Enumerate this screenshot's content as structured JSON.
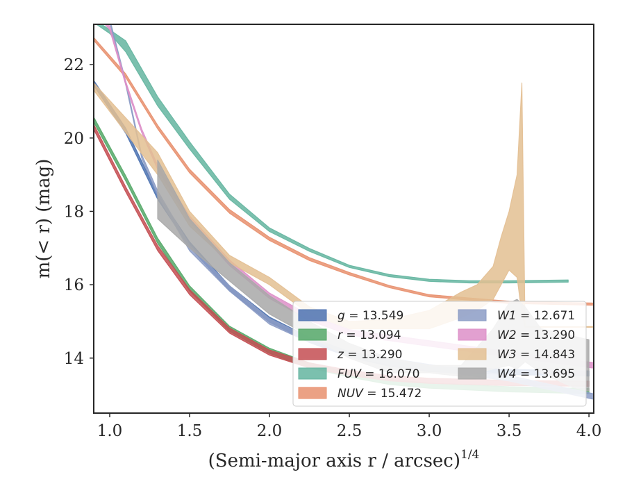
{
  "chart_data": {
    "type": "line",
    "xlabel": "(Semi-major axis r / arcsec)",
    "xlabel_exponent": "1/4",
    "ylabel": "m(< r) (mag)",
    "xlim": [
      0.9,
      4.03
    ],
    "ylim": [
      23.1,
      12.5
    ],
    "y_inverted": true,
    "x_ticks": [
      "1.0",
      "1.5",
      "2.0",
      "2.5",
      "3.0",
      "3.5",
      "4.0"
    ],
    "y_ticks": [
      "14",
      "16",
      "18",
      "20",
      "22"
    ],
    "legend_placement": "lower-right",
    "series": [
      {
        "name": "g = 13.549",
        "band": "g",
        "total": "13.549",
        "color": "#4c72b0",
        "x": [
          0.9,
          1.1,
          1.3,
          1.5,
          1.75,
          2.0,
          2.25,
          2.5,
          2.75,
          3.0,
          3.5,
          4.0
        ],
        "y": [
          21.5,
          20.2,
          18.4,
          17.1,
          15.9,
          15.05,
          14.5,
          14.1,
          13.85,
          13.7,
          13.62,
          13.58
        ],
        "width": [
          0.14,
          0.14,
          0.14,
          0.14,
          0.14,
          0.14,
          0.14,
          0.14,
          0.14,
          0.14,
          0.14,
          0.14
        ]
      },
      {
        "name": "r = 13.094",
        "band": "r",
        "total": "13.094",
        "color": "#55a868",
        "x": [
          0.9,
          1.1,
          1.3,
          1.5,
          1.75,
          2.0,
          2.25,
          2.5,
          2.75,
          3.0,
          3.5,
          4.0
        ],
        "y": [
          20.5,
          18.9,
          17.2,
          15.9,
          14.8,
          14.2,
          13.8,
          13.55,
          13.35,
          13.25,
          13.15,
          13.1
        ],
        "width": [
          0.14,
          0.14,
          0.14,
          0.14,
          0.14,
          0.14,
          0.14,
          0.14,
          0.14,
          0.14,
          0.14,
          0.14
        ]
      },
      {
        "name": "z = 13.290",
        "band": "z",
        "total": "13.290",
        "color": "#c44e52",
        "x": [
          0.9,
          1.1,
          1.3,
          1.5,
          1.75,
          2.0,
          2.25,
          2.5,
          2.75,
          3.0,
          3.5,
          4.0
        ],
        "y": [
          20.3,
          18.6,
          17.0,
          15.8,
          14.75,
          14.15,
          13.8,
          13.6,
          13.45,
          13.38,
          13.32,
          13.3
        ],
        "width": [
          0.14,
          0.14,
          0.14,
          0.14,
          0.14,
          0.14,
          0.14,
          0.14,
          0.14,
          0.14,
          0.14,
          0.14
        ]
      },
      {
        "name": "FUV = 16.070",
        "band": "FUV",
        "total": "16.070",
        "color": "#64b5a0",
        "x": [
          0.9,
          1.0,
          1.1,
          1.3,
          1.5,
          1.75,
          2.0,
          2.25,
          2.5,
          2.75,
          3.0,
          3.25,
          3.5,
          3.87
        ],
        "y": [
          23.2,
          22.9,
          22.5,
          21.0,
          19.8,
          18.4,
          17.5,
          16.95,
          16.5,
          16.25,
          16.12,
          16.08,
          16.08,
          16.1
        ],
        "width": [
          0.1,
          0.1,
          0.3,
          0.25,
          0.2,
          0.14,
          0.1,
          0.08,
          0.06,
          0.06,
          0.06,
          0.06,
          0.06,
          0.06
        ]
      },
      {
        "name": "NUV = 15.472",
        "band": "NUV",
        "total": "15.472",
        "color": "#e8906e",
        "x": [
          0.9,
          1.1,
          1.3,
          1.5,
          1.75,
          2.0,
          2.25,
          2.5,
          2.75,
          3.0,
          3.5,
          4.03
        ],
        "y": [
          22.7,
          21.7,
          20.3,
          19.1,
          18.0,
          17.25,
          16.7,
          16.3,
          15.95,
          15.7,
          15.52,
          15.47
        ],
        "width": [
          0.08,
          0.1,
          0.1,
          0.1,
          0.1,
          0.09,
          0.08,
          0.07,
          0.06,
          0.06,
          0.06,
          0.06
        ]
      },
      {
        "name": "W1 = 12.671",
        "band": "W1",
        "total": "12.671",
        "color": "#8c9cc5",
        "x": [
          0.9,
          1.0,
          1.1,
          1.2,
          1.3,
          1.5,
          1.75,
          2.0,
          2.25,
          2.5,
          3.0,
          3.5,
          4.03
        ],
        "y": [
          23.5,
          23.2,
          21.5,
          19.5,
          18.5,
          17.0,
          15.9,
          15.0,
          14.5,
          14.1,
          13.75,
          13.45,
          12.95
        ],
        "width": [
          0.1,
          0.1,
          0.1,
          0.1,
          0.12,
          0.15,
          0.15,
          0.15,
          0.15,
          0.15,
          0.15,
          0.15,
          0.15
        ]
      },
      {
        "name": "W2 = 13.290",
        "band": "W2",
        "total": "13.290",
        "color": "#dd8fc8",
        "x": [
          0.9,
          1.0,
          1.1,
          1.2,
          1.3,
          1.5,
          1.75,
          2.0,
          2.25,
          2.5,
          3.0,
          3.5,
          4.03
        ],
        "y": [
          23.5,
          23.0,
          21.5,
          20.2,
          19.2,
          17.8,
          16.6,
          15.7,
          15.1,
          14.7,
          14.4,
          14.1,
          13.8
        ],
        "width": [
          0.1,
          0.1,
          0.1,
          0.1,
          0.12,
          0.15,
          0.15,
          0.15,
          0.15,
          0.15,
          0.15,
          0.15,
          0.15
        ]
      },
      {
        "name": "W3 = 14.843",
        "band": "W3",
        "total": "14.843",
        "color": "#e3bf92",
        "x": [
          0.9,
          1.3,
          1.5,
          1.75,
          2.0,
          2.25,
          2.5,
          2.75,
          3.0,
          3.2,
          3.3,
          3.4,
          3.45,
          3.5,
          3.55,
          3.58,
          3.6,
          3.8,
          4.03
        ],
        "y_upper": [
          21.3,
          19.0,
          17.6,
          16.6,
          16.0,
          15.2,
          14.8,
          14.8,
          14.8,
          15.1,
          15.3,
          15.6,
          16.0,
          16.4,
          16.2,
          15.2,
          14.84,
          14.84,
          14.84
        ],
        "y_lower": [
          21.5,
          19.6,
          18.0,
          16.8,
          16.2,
          15.4,
          15.0,
          15.05,
          15.3,
          15.8,
          16.0,
          16.5,
          17.3,
          18.0,
          19.0,
          21.5,
          14.86,
          14.86,
          14.86
        ]
      },
      {
        "name": "W4 = 13.695",
        "band": "W4",
        "total": "13.695",
        "color": "#a8a8a8",
        "x": [
          1.3,
          1.5,
          1.75,
          2.0,
          2.25,
          2.5,
          2.75,
          3.0,
          3.2,
          3.3,
          3.4,
          3.5,
          3.55,
          3.6,
          3.7,
          3.8,
          3.9,
          4.0
        ],
        "y_upper": [
          17.8,
          17.0,
          16.1,
          15.2,
          14.6,
          14.0,
          13.6,
          13.6,
          13.5,
          13.6,
          13.7,
          13.8,
          13.7,
          13.9,
          13.6,
          13.4,
          13.2,
          13.1
        ],
        "y_lower": [
          19.4,
          17.8,
          16.6,
          15.7,
          15.0,
          14.4,
          14.0,
          13.8,
          13.8,
          14.3,
          14.8,
          15.5,
          15.6,
          15.4,
          14.8,
          14.7,
          14.6,
          14.5
        ]
      }
    ]
  }
}
